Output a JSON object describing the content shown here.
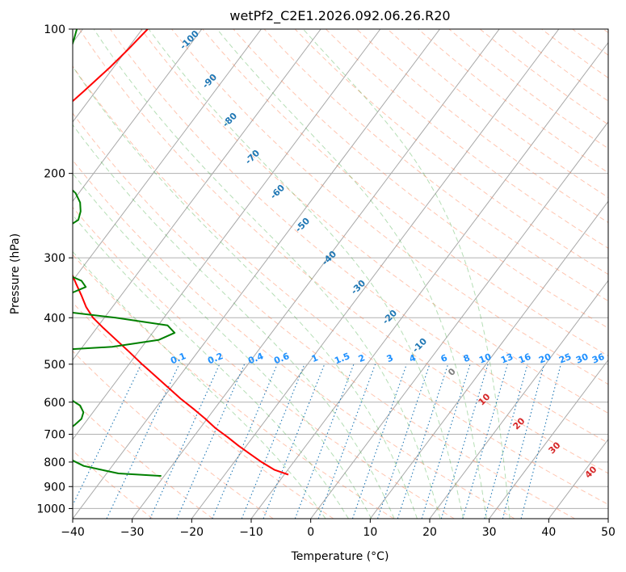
{
  "chart_data": {
    "type": "line",
    "title": "wetPf2_C2E1.2026.092.06.26.R20",
    "xlabel": "Temperature (°C)",
    "ylabel": "Pressure (hPa)",
    "xlim": [
      -40,
      50
    ],
    "ylim": [
      1050,
      100
    ],
    "y_scale": "log",
    "x_ticks": [
      -40,
      -30,
      -20,
      -10,
      0,
      10,
      20,
      30,
      40,
      50
    ],
    "y_ticks": [
      100,
      200,
      300,
      400,
      500,
      600,
      700,
      800,
      900,
      1000
    ],
    "grid": true,
    "skew": true,
    "colors": {
      "temperature": "#ff0000",
      "dewpoint": "#008000",
      "dry_adiabat": "#ff7f50",
      "moist_adiabat": "#2ca02c",
      "mixing_ratio": "#1f77b4",
      "isotherm": "#808080",
      "wetbulb_label": "#d62728"
    },
    "series": [
      {
        "role": "temperature",
        "pressure": [
          850,
          830,
          800,
          770,
          740,
          710,
          680,
          650,
          620,
          590,
          560,
          530,
          500,
          470,
          445,
          420,
          400,
          380,
          360,
          340,
          320,
          300,
          280,
          260,
          245,
          230,
          220,
          210,
          200,
          190,
          180,
          165,
          150,
          135,
          120,
          110,
          100
        ],
        "temp": [
          -9.3,
          -12.3,
          -15.4,
          -18.3,
          -21.3,
          -24.2,
          -27.4,
          -30.3,
          -33.5,
          -37.0,
          -40.4,
          -44.0,
          -47.8,
          -51.7,
          -55.2,
          -58.9,
          -61.9,
          -64.4,
          -66.6,
          -69.0,
          -71.5,
          -74.8,
          -78.0,
          -81.5,
          -83.8,
          -86.5,
          -88.5,
          -90.8,
          -93.5,
          -95.0,
          -95.9,
          -95.3,
          -93.4,
          -92.0,
          -90.6,
          -89.8,
          -89.1
        ]
      },
      {
        "role": "dewpoint",
        "pressure": [
          855,
          845,
          830,
          815,
          795,
          780,
          765,
          750,
          740,
          730,
          725,
          715,
          700,
          685,
          670,
          650,
          630,
          610,
          590,
          570,
          545,
          520,
          505,
          498,
          490,
          475,
          460,
          445,
          430,
          415,
          400,
          385,
          375,
          365,
          355,
          345,
          335,
          325,
          315,
          305,
          295,
          285,
          275,
          262,
          250,
          240,
          230,
          220,
          210,
          200,
          190,
          180,
          170,
          160,
          150,
          140,
          130,
          120,
          110,
          105,
          100
        ],
        "temp": [
          -30.5,
          -38.0,
          -41.4,
          -44.8,
          -47.2,
          -48.8,
          -51.2,
          -53.5,
          -58.6,
          -64.5,
          -62.0,
          -55.4,
          -52.6,
          -52.0,
          -51.5,
          -51.1,
          -51.6,
          -53.0,
          -55.7,
          -60.0,
          -66.0,
          -75.3,
          -85.0,
          -100.0,
          -94.3,
          -73.8,
          -55.0,
          -48.1,
          -46.3,
          -48.4,
          -58.1,
          -70.5,
          -77.0,
          -72.3,
          -68.6,
          -67.0,
          -68.5,
          -71.7,
          -76.2,
          -80.5,
          -83.2,
          -82.0,
          -80.5,
          -78.0,
          -76.7,
          -77.4,
          -78.6,
          -80.5,
          -83.4,
          -87.0,
          -91.3,
          -95.0,
          -95.8,
          -95.2,
          -96.0,
          -97.2,
          -98.0,
          -98.3,
          -99.5,
          -100.2,
          -101.0
        ]
      }
    ],
    "dry_adiabat_labels": [
      "-100",
      "-90",
      "-80",
      "-70",
      "-60",
      "-50",
      "-40",
      "-30",
      "-20",
      "-10",
      "0",
      "10",
      "20",
      "30",
      "40"
    ],
    "mixing_ratio_labels": [
      "0.1",
      "0.2",
      "0.4",
      "0.6",
      "1",
      "1.5",
      "2",
      "3",
      "4",
      "6",
      "8",
      "10",
      "13",
      "16",
      "20",
      "25",
      "30",
      "36"
    ]
  }
}
